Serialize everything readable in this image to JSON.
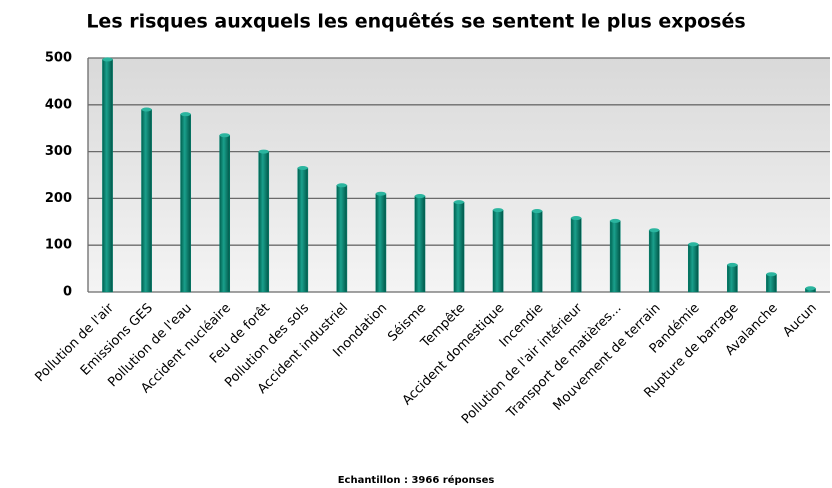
{
  "chart_data": {
    "type": "bar",
    "title": "Les risques auxquels les enquêtés se sentent le plus exposés",
    "note": "Echantillon  : 3966 réponses",
    "categories": [
      "Pollution de l'air",
      "Emissions GES",
      "Pollution de l'eau",
      "Accident nucléaire",
      "Feu de forêt",
      "Pollution des sols",
      "Accident industriel",
      "Inondation",
      "Séisme",
      "Tempête",
      "Accident domestique",
      "Incendie",
      "Pollution de l'air intérieur",
      "Transport de matières...",
      "Mouvement de terrain",
      "Pandémie",
      "Rupture de barrage",
      "Avalanche",
      "Aucun"
    ],
    "values": [
      497,
      390,
      380,
      335,
      300,
      265,
      228,
      210,
      205,
      192,
      175,
      173,
      158,
      152,
      132,
      102,
      58,
      38,
      8
    ],
    "color": "#00806e",
    "ylim": [
      0,
      500
    ],
    "yticks": [
      0,
      100,
      200,
      300,
      400,
      500
    ],
    "grid": true
  }
}
